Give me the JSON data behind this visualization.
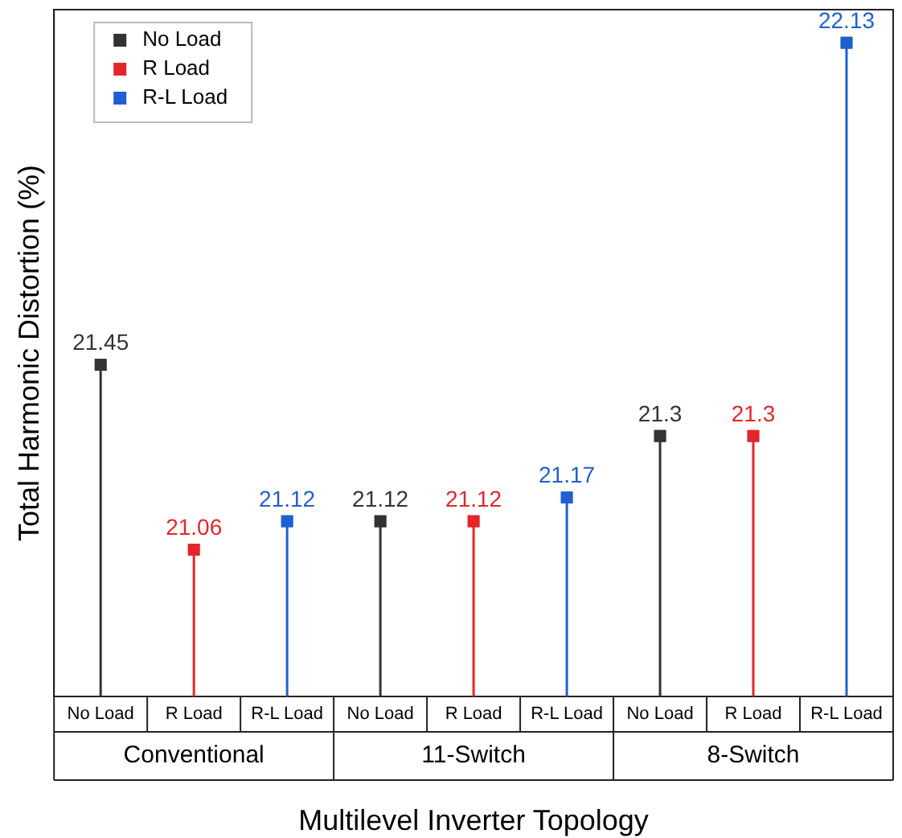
{
  "chart_data": {
    "type": "lollipop",
    "xlabel": "Multilevel Inverter Topology",
    "ylabel": "Total Harmonic Distortion (%)",
    "categories": [
      "No Load",
      "R Load",
      "R-L Load",
      "No Load",
      "R Load",
      "R-L Load",
      "No Load",
      "R Load",
      "R-L Load"
    ],
    "annotations": [
      "Conventional",
      "11-Switch",
      "8-Switch"
    ],
    "ylim": [
      20.75,
      22.2
    ],
    "tick_labels": "x",
    "grid": false,
    "legend": "top left",
    "marker": "square",
    "line_style": "solid",
    "data_labels": true,
    "series": [
      {
        "name": "No Load",
        "color": "#333333",
        "values": [
          21.45,
          null,
          null,
          21.12,
          null,
          null,
          21.3,
          null,
          null
        ]
      },
      {
        "name": "R Load",
        "color": "#e3262b",
        "values": [
          null,
          21.06,
          null,
          null,
          21.12,
          null,
          null,
          21.3,
          null
        ]
      },
      {
        "name": "R-L Load",
        "color": "#1f5fd0",
        "values": [
          null,
          null,
          21.12,
          null,
          null,
          21.17,
          null,
          null,
          22.13
        ]
      }
    ]
  }
}
